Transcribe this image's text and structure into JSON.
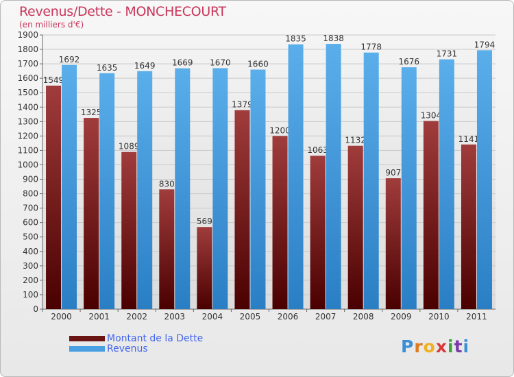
{
  "title": "Revenus/Dette - MONCHECOURT",
  "subtitle": "(en milliers d'€)",
  "colors": {
    "dette": "#6b1414",
    "revenus": "#4a9fe2",
    "title": "#c8365a"
  },
  "chart_data": {
    "type": "bar",
    "title": "Revenus/Dette - MONCHECOURT",
    "subtitle": "(en milliers d'€)",
    "categories": [
      "2000",
      "2001",
      "2002",
      "2003",
      "2004",
      "2005",
      "2006",
      "2007",
      "2008",
      "2009",
      "2010",
      "2011"
    ],
    "series": [
      {
        "name": "Montant de la Dette",
        "values": [
          1549,
          1325,
          1089,
          830,
          569,
          1379,
          1200,
          1063,
          1132,
          907,
          1304,
          1141
        ]
      },
      {
        "name": "Revenus",
        "values": [
          1692,
          1635,
          1649,
          1669,
          1670,
          1660,
          1835,
          1838,
          1778,
          1676,
          1731,
          1794
        ]
      }
    ],
    "ylim": [
      0,
      1900
    ],
    "yticks": [
      0,
      100,
      200,
      300,
      400,
      500,
      600,
      700,
      800,
      900,
      1000,
      1100,
      1200,
      1300,
      1400,
      1500,
      1600,
      1700,
      1800,
      1900
    ],
    "grid": true,
    "legend": "bottom-left"
  },
  "legend": {
    "items": [
      {
        "label": "Montant de la Dette"
      },
      {
        "label": "Revenus"
      }
    ]
  },
  "logo": {
    "letters": [
      {
        "ch": "P",
        "color": "#3a8fd6"
      },
      {
        "ch": "r",
        "color": "#e07a1e"
      },
      {
        "ch": "o",
        "color": "#f0b020"
      },
      {
        "ch": "x",
        "color": "#d83a3a"
      },
      {
        "ch": "i",
        "color": "#3aa43a"
      },
      {
        "ch": "t",
        "color": "#7a3aa8"
      },
      {
        "ch": "i",
        "color": "#3a8fd6"
      }
    ]
  }
}
